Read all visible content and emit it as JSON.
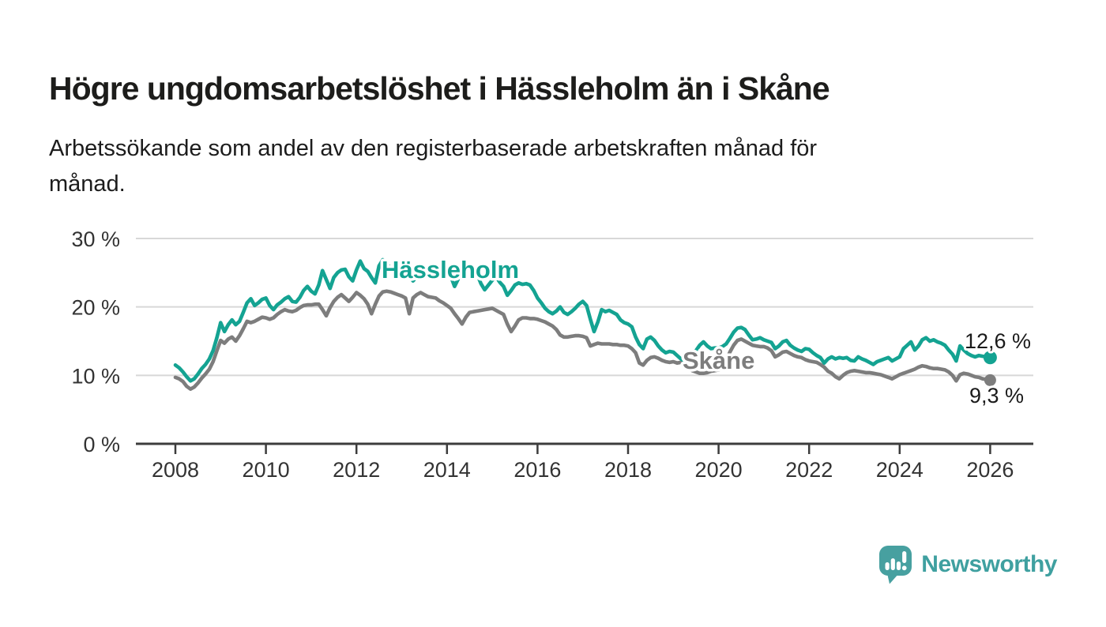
{
  "header": {
    "title": "Högre ungdomsarbetslöshet i Hässleholm än i Skåne",
    "subtitle_line1": "Arbetssökande som andel av den registerbaserade arbetskraften månad för",
    "subtitle_line2": "månad."
  },
  "footer": {
    "brand": "Newsworthy",
    "brand_text_color": "#3fa0a0",
    "logo_icon_color": "#47a0a0"
  },
  "chart_data": {
    "type": "line",
    "x_unit": "year, monthly observations",
    "ylabel": "",
    "xlim": [
      2007.6,
      2027.0
    ],
    "ylim": [
      0,
      30
    ],
    "grid": "horizontal",
    "y_ticks": [
      {
        "value": 0,
        "label": "0 %"
      },
      {
        "value": 10,
        "label": "10 %"
      },
      {
        "value": 20,
        "label": "20 %"
      },
      {
        "value": 30,
        "label": "30 %"
      }
    ],
    "x_ticks": [
      2008,
      2010,
      2012,
      2014,
      2016,
      2018,
      2020,
      2022,
      2024,
      2026
    ],
    "series": [
      {
        "id": "hassleholm",
        "name": "Hässleholm",
        "color": "#14a392",
        "end_label": "12,6 %",
        "end_value": 12.6,
        "x_start": 2008.0,
        "x_step_months": 1,
        "values": [
          11.5,
          11.1,
          10.5,
          9.8,
          9.2,
          9.5,
          10.2,
          11.0,
          11.6,
          12.4,
          13.6,
          15.5,
          17.7,
          16.4,
          17.4,
          18.1,
          17.4,
          17.9,
          19.2,
          20.6,
          21.2,
          20.2,
          20.6,
          21.1,
          21.3,
          20.2,
          19.6,
          20.3,
          20.7,
          21.2,
          21.5,
          20.8,
          20.7,
          21.4,
          22.4,
          23.0,
          22.3,
          21.9,
          23.2,
          25.3,
          24.0,
          22.7,
          24.3,
          25.0,
          25.4,
          25.5,
          24.4,
          23.8,
          25.4,
          26.7,
          25.6,
          25.2,
          24.3,
          23.5,
          26.0,
          26.9,
          26.3,
          25.7,
          25.2,
          24.8,
          25.1,
          25.3,
          24.6,
          23.8,
          24.4,
          24.9,
          25.6,
          25.8,
          25.2,
          24.7,
          24.4,
          24.7,
          25.2,
          24.5,
          23.0,
          24.1,
          25.7,
          26.2,
          25.7,
          25.9,
          24.8,
          23.4,
          22.5,
          23.2,
          23.9,
          24.4,
          23.6,
          23.0,
          21.7,
          22.4,
          23.2,
          23.5,
          23.3,
          23.4,
          23.2,
          22.4,
          21.3,
          20.6,
          19.8,
          19.3,
          19.0,
          19.4,
          20.0,
          19.2,
          18.9,
          19.3,
          19.8,
          20.4,
          20.8,
          20.2,
          18.2,
          16.4,
          17.8,
          19.6,
          19.3,
          19.5,
          19.2,
          18.9,
          18.1,
          17.7,
          17.5,
          17.1,
          15.6,
          14.5,
          13.9,
          15.3,
          15.6,
          15.1,
          14.3,
          13.7,
          13.3,
          13.5,
          13.4,
          12.9,
          12.4,
          12.1,
          12.4,
          12.9,
          13.6,
          14.4,
          14.9,
          14.3,
          13.9,
          14.0,
          14.0,
          14.2,
          14.6,
          15.4,
          16.3,
          16.9,
          17.0,
          16.7,
          15.9,
          15.2,
          15.3,
          15.5,
          15.2,
          15.0,
          14.8,
          13.9,
          14.3,
          14.9,
          15.1,
          14.4,
          14.0,
          13.7,
          13.5,
          13.9,
          13.8,
          13.3,
          12.9,
          12.6,
          11.8,
          12.4,
          12.7,
          12.4,
          12.6,
          12.5,
          12.6,
          12.2,
          12.1,
          12.7,
          12.4,
          12.2,
          11.9,
          11.6,
          12.0,
          12.2,
          12.4,
          12.6,
          12.1,
          12.4,
          12.7,
          13.9,
          14.4,
          14.9,
          13.7,
          14.3,
          15.2,
          15.5,
          15.0,
          15.2,
          14.9,
          14.7,
          14.4,
          13.7,
          13.1,
          12.1,
          14.3,
          13.7,
          13.2,
          12.9,
          12.7,
          12.9,
          12.8,
          12.7,
          12.6
        ]
      },
      {
        "id": "skane",
        "name": "Skåne",
        "color": "#7d7d7d",
        "end_label": "9,3 %",
        "end_value": 9.3,
        "x_start": 2008.0,
        "x_step_months": 1,
        "values": [
          9.7,
          9.5,
          9.1,
          8.4,
          8.0,
          8.3,
          8.9,
          9.6,
          10.2,
          10.9,
          12.0,
          13.6,
          15.1,
          14.7,
          15.3,
          15.6,
          15.0,
          15.8,
          16.8,
          17.9,
          17.7,
          17.9,
          18.2,
          18.5,
          18.4,
          18.2,
          18.4,
          18.9,
          19.3,
          19.6,
          19.4,
          19.3,
          19.5,
          19.9,
          20.2,
          20.3,
          20.3,
          20.4,
          20.4,
          19.6,
          18.7,
          19.9,
          20.8,
          21.4,
          21.8,
          21.3,
          20.8,
          21.4,
          22.1,
          21.7,
          21.2,
          20.4,
          19.0,
          20.4,
          21.6,
          22.2,
          22.3,
          22.2,
          22.0,
          21.8,
          21.6,
          21.3,
          19.0,
          21.3,
          21.8,
          22.1,
          21.8,
          21.5,
          21.4,
          21.3,
          20.9,
          20.6,
          20.2,
          19.8,
          19.0,
          18.3,
          17.5,
          18.5,
          19.2,
          19.3,
          19.4,
          19.5,
          19.6,
          19.7,
          19.8,
          19.5,
          19.2,
          18.9,
          17.5,
          16.4,
          17.2,
          18.1,
          18.4,
          18.4,
          18.3,
          18.3,
          18.2,
          18.0,
          17.8,
          17.5,
          17.2,
          16.7,
          15.9,
          15.6,
          15.6,
          15.7,
          15.8,
          15.8,
          15.7,
          15.5,
          14.3,
          14.5,
          14.7,
          14.6,
          14.6,
          14.6,
          14.5,
          14.5,
          14.4,
          14.4,
          14.3,
          13.9,
          13.3,
          11.8,
          11.5,
          12.2,
          12.6,
          12.7,
          12.5,
          12.2,
          12.0,
          11.9,
          12.0,
          11.8,
          11.9,
          11.8,
          11.2,
          10.7,
          10.5,
          10.3,
          10.3,
          10.4,
          10.6,
          10.7,
          10.8,
          11.2,
          12.2,
          13.4,
          14.4,
          15.1,
          15.3,
          15.0,
          14.7,
          14.4,
          14.3,
          14.2,
          14.2,
          14.0,
          13.6,
          12.7,
          13.0,
          13.4,
          13.5,
          13.2,
          12.9,
          12.7,
          12.6,
          12.3,
          12.1,
          12.0,
          11.9,
          11.6,
          11.2,
          10.6,
          10.3,
          9.8,
          9.5,
          10.0,
          10.4,
          10.6,
          10.7,
          10.6,
          10.5,
          10.4,
          10.4,
          10.3,
          10.2,
          10.1,
          9.9,
          9.7,
          9.5,
          9.8,
          10.1,
          10.3,
          10.5,
          10.7,
          10.9,
          11.2,
          11.4,
          11.3,
          11.1,
          11.0,
          11.0,
          10.9,
          10.8,
          10.5,
          10.0,
          9.2,
          10.1,
          10.3,
          10.2,
          10.0,
          9.8,
          9.7,
          9.5,
          9.4,
          9.3
        ]
      }
    ],
    "style": {
      "gridline_color": "#d8d8d8",
      "axis_color": "#3c3c3c",
      "tick_label_color": "#333333",
      "value_label_color": "#1a1a1a"
    }
  }
}
